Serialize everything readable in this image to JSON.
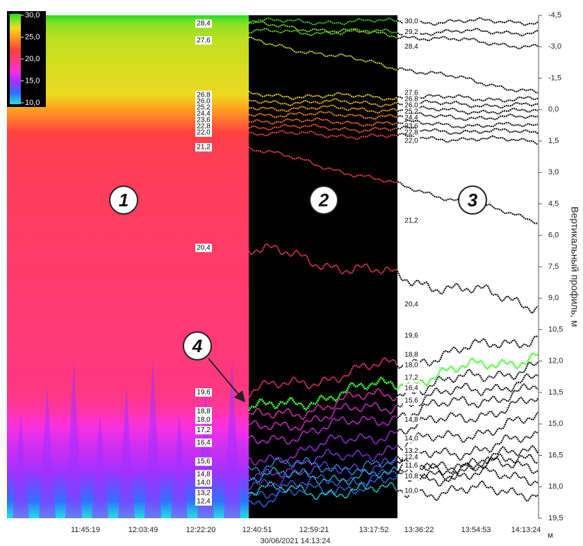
{
  "chart_data": {
    "type": "depth-profile",
    "y_axis_title": "Вертикальный профиль, м",
    "ylim": [
      -4.5,
      19.5
    ],
    "yticks": [
      {
        "value": -4.5,
        "label": "-4,5"
      },
      {
        "value": -3,
        "label": "-3,0"
      },
      {
        "value": -1.5,
        "label": "-1,5"
      },
      {
        "value": 0,
        "label": "0,0"
      },
      {
        "value": 1.5,
        "label": "1,5"
      },
      {
        "value": 3,
        "label": "3,0"
      },
      {
        "value": 4.5,
        "label": "4,5"
      },
      {
        "value": 6,
        "label": "6,0"
      },
      {
        "value": 7.5,
        "label": "7,5"
      },
      {
        "value": 9,
        "label": "9,0"
      },
      {
        "value": 10.5,
        "label": "10,5"
      },
      {
        "value": 12,
        "label": "12,0"
      },
      {
        "value": 13.5,
        "label": "13,5"
      },
      {
        "value": 15,
        "label": "15,0"
      },
      {
        "value": 16.5,
        "label": "16,5"
      },
      {
        "value": 18,
        "label": "18,0"
      },
      {
        "value": 19.5,
        "label": "19,5"
      }
    ],
    "x_tick_labels": [
      "11:45:19",
      "12:03:49",
      "12:22:20",
      "12:40:51",
      "12:59:21",
      "13:17:52",
      "13:36:22",
      "13:54:53",
      "14:13:24"
    ],
    "x_unit": "м",
    "timestamp": "30/06/2021 14:13:24",
    "colorbar": {
      "lim": [
        10,
        30
      ],
      "ticks": [
        {
          "value": 30,
          "label": "30,0"
        },
        {
          "value": 25,
          "label": "25,0"
        },
        {
          "value": 20,
          "label": "20,0"
        },
        {
          "value": 15,
          "label": "15,0"
        },
        {
          "value": 10,
          "label": "10,0"
        }
      ],
      "colormap": [
        {
          "value": 10,
          "color": "#22e0e0"
        },
        {
          "value": 12.5,
          "color": "#3070ff"
        },
        {
          "value": 15,
          "color": "#a030ff"
        },
        {
          "value": 17.5,
          "color": "#ff30e0"
        },
        {
          "value": 20,
          "color": "#ff3a70"
        },
        {
          "value": 22,
          "color": "#ff4040"
        },
        {
          "value": 25,
          "color": "#ffa020"
        },
        {
          "value": 27,
          "color": "#e8e020"
        },
        {
          "value": 30,
          "color": "#20e020"
        }
      ]
    },
    "callouts": [
      "1",
      "2",
      "3",
      "4"
    ],
    "isotherms": [
      {
        "value": 30.0,
        "label": "30,0",
        "depth_left": null,
        "depth_right": -4.2
      },
      {
        "value": 29.2,
        "label": "29,2",
        "depth_left": null,
        "depth_right": -3.7
      },
      {
        "value": 28.4,
        "label": "28,4",
        "depth_left": -4.1,
        "depth_right": -3.0
      },
      {
        "value": 27.6,
        "label": "27,6",
        "depth_left": -3.3,
        "depth_right": -0.8
      },
      {
        "value": 26.8,
        "label": "26,8",
        "depth_left": -0.7,
        "depth_right": -0.5
      },
      {
        "value": 26.0,
        "label": "26,0",
        "depth_left": -0.4,
        "depth_right": -0.2
      },
      {
        "value": 25.2,
        "label": "25,2",
        "depth_left": -0.1,
        "depth_right": 0.1
      },
      {
        "value": 24.4,
        "label": "24,4",
        "depth_left": 0.2,
        "depth_right": 0.4
      },
      {
        "value": 23.6,
        "label": "23,6",
        "depth_left": 0.5,
        "depth_right": 0.8
      },
      {
        "value": 22.8,
        "label": "22,8",
        "depth_left": 0.8,
        "depth_right": 1.1
      },
      {
        "value": 22.0,
        "label": "22,0",
        "depth_left": 1.1,
        "depth_right": 1.5
      },
      {
        "value": 21.2,
        "label": "21,2",
        "depth_left": 1.8,
        "depth_right": 5.3
      },
      {
        "value": 20.4,
        "label": "20,4",
        "depth_left": 6.6,
        "depth_right": 9.3
      },
      {
        "value": 19.6,
        "label": "19,6",
        "depth_left": 13.5,
        "depth_right": 10.8
      },
      {
        "value": 18.8,
        "label": "18,8",
        "depth_left": 14.4,
        "depth_right": 11.7,
        "color": "#44ff33"
      },
      {
        "value": 18.0,
        "label": "18,0",
        "depth_left": 14.8,
        "depth_right": 12.2
      },
      {
        "value": 17.2,
        "label": "17,2",
        "depth_left": 15.3,
        "depth_right": 12.8
      },
      {
        "value": 16.4,
        "label": "16,4",
        "depth_left": 15.9,
        "depth_right": 13.3
      },
      {
        "value": 15.6,
        "label": "15,6",
        "depth_left": 16.8,
        "depth_right": 13.9
      },
      {
        "value": 14.8,
        "label": "14,8",
        "depth_left": 17.4,
        "depth_right": 14.8
      },
      {
        "value": 14.0,
        "label": "14,0",
        "depth_left": 17.8,
        "depth_right": 15.7
      },
      {
        "value": 13.2,
        "label": "13,2",
        "depth_left": 18.3,
        "depth_right": 16.3
      },
      {
        "value": 12.4,
        "label": "12,4",
        "depth_left": 18.7,
        "depth_right": 16.6
      },
      {
        "value": 11.6,
        "label": "11,6",
        "depth_left": null,
        "depth_right": 17.0
      },
      {
        "value": 10.8,
        "label": "10,8",
        "depth_left": null,
        "depth_right": 17.5
      },
      {
        "value": 10.0,
        "label": "10,0",
        "depth_left": null,
        "depth_right": 18.2
      }
    ]
  }
}
